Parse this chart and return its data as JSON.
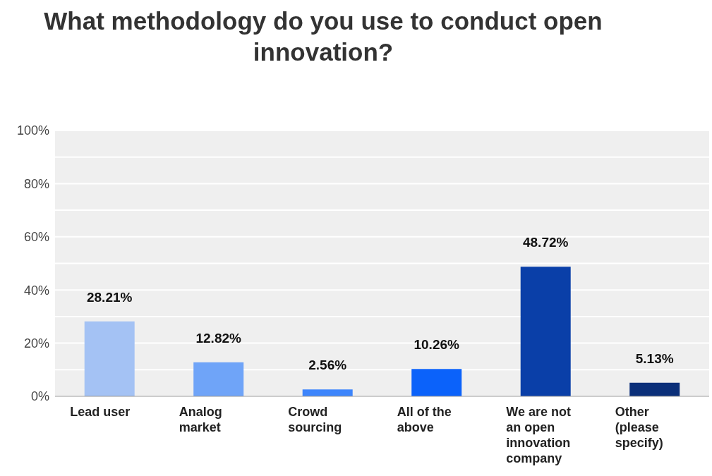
{
  "chart_data": {
    "type": "bar",
    "title": "What methodology do you use to conduct open innovation?",
    "categories": [
      "Lead user",
      "Analog market",
      "Crowd sourcing",
      "All of the above",
      "We are not an open innovation company",
      "Other (please specify)"
    ],
    "values": [
      28.21,
      12.82,
      2.56,
      10.26,
      48.72,
      5.13
    ],
    "colors": [
      "#a4c2f4",
      "#6fa4f8",
      "#3d85fc",
      "#0b62fa",
      "#0a3fa8",
      "#0b2f79"
    ],
    "value_labels": [
      "28.21%",
      "12.82%",
      "2.56%",
      "10.26%",
      "48.72%",
      "5.13%"
    ],
    "ylim": [
      0,
      100
    ],
    "yticks": [
      {
        "value": 0,
        "label": "0%"
      },
      {
        "value": 10,
        "label": null
      },
      {
        "value": 20,
        "label": "20%"
      },
      {
        "value": 30,
        "label": null
      },
      {
        "value": 40,
        "label": "40%"
      },
      {
        "value": 50,
        "label": null
      },
      {
        "value": 60,
        "label": "60%"
      },
      {
        "value": 70,
        "label": null
      },
      {
        "value": 80,
        "label": "80%"
      },
      {
        "value": 90,
        "label": null
      },
      {
        "value": 100,
        "label": "100%"
      }
    ],
    "grid": "y",
    "legend": false
  }
}
